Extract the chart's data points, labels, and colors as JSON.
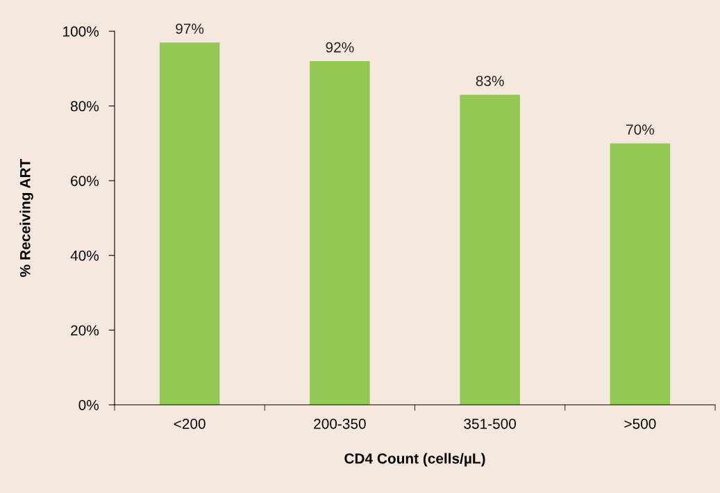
{
  "chart_data": {
    "type": "bar",
    "xlabel": "CD4 Count (cells/µL)",
    "ylabel": "% Receiving ART",
    "categories": [
      "<200",
      "200-350",
      "351-500",
      ">500"
    ],
    "values": [
      97,
      92,
      83,
      70
    ],
    "value_labels": [
      "97%",
      "92%",
      "83%",
      "70%"
    ],
    "color": "#92c853",
    "ylim": [
      0,
      100
    ],
    "yticks": [
      {
        "value": 0,
        "label": "0%"
      },
      {
        "value": 20,
        "label": "20%"
      },
      {
        "value": 40,
        "label": "40%"
      },
      {
        "value": 60,
        "label": "60%"
      },
      {
        "value": 80,
        "label": "80%"
      },
      {
        "value": 100,
        "label": "100%"
      }
    ],
    "grid": false,
    "legend": false
  }
}
